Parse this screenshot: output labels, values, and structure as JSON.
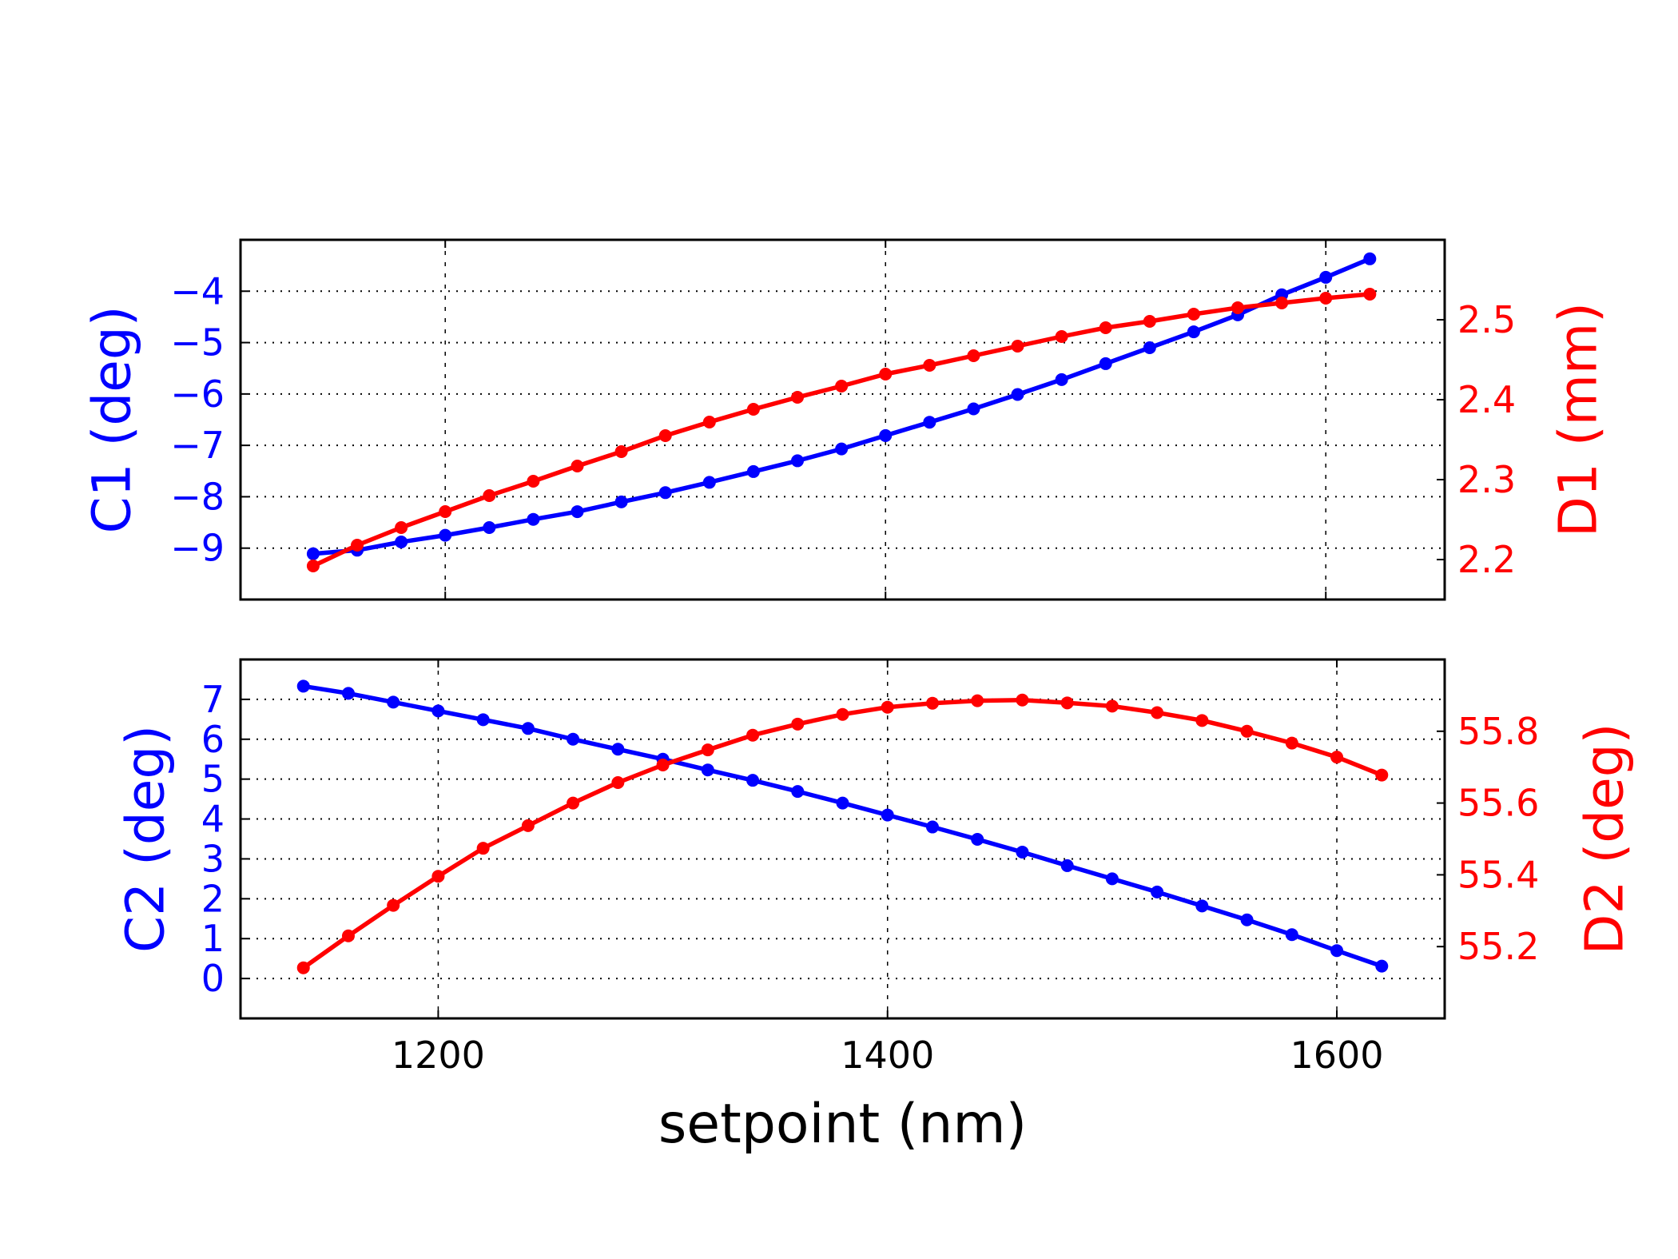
{
  "colors": {
    "left_series": "#0000ff",
    "right_series": "#ff0000",
    "grid": "#000000"
  },
  "chart_data": [
    {
      "type": "line",
      "panel": "top",
      "xlabel": "",
      "ylabel_left": "C1 (deg)",
      "ylabel_right": "D1 (mm)",
      "xlim": [
        1107,
        1654
      ],
      "ylim_left": [
        -10,
        -3
      ],
      "ylim_right": [
        2.15,
        2.6
      ],
      "xticks": [
        1200,
        1400,
        1600
      ],
      "show_xtick_labels": false,
      "yticks_left": [
        -9,
        -8,
        -7,
        -6,
        -5,
        -4
      ],
      "ytick_labels_left": [
        "−9",
        "−8",
        "−7",
        "−6",
        "−5",
        "−4"
      ],
      "yticks_right": [
        2.2,
        2.3,
        2.4,
        2.5
      ],
      "ytick_labels_right": [
        "2.2",
        "2.3",
        "2.4",
        "2.5"
      ],
      "grid": true,
      "x": [
        1140,
        1160,
        1180,
        1200,
        1220,
        1240,
        1260,
        1280,
        1300,
        1320,
        1340,
        1360,
        1380,
        1400,
        1420,
        1440,
        1460,
        1480,
        1500,
        1520,
        1540,
        1560,
        1580,
        1600,
        1620
      ],
      "series": [
        {
          "axis": "left",
          "color": "#0000ff",
          "values": [
            -9.11,
            -9.04,
            -8.88,
            -8.75,
            -8.6,
            -8.44,
            -8.29,
            -8.1,
            -7.92,
            -7.72,
            -7.51,
            -7.3,
            -7.07,
            -6.81,
            -6.55,
            -6.29,
            -6.01,
            -5.72,
            -5.41,
            -5.1,
            -4.79,
            -4.46,
            -4.07,
            -3.73,
            -3.37
          ]
        },
        {
          "axis": "right",
          "color": "#ff0000",
          "values": [
            2.192,
            2.218,
            2.24,
            2.26,
            2.28,
            2.298,
            2.317,
            2.335,
            2.355,
            2.372,
            2.388,
            2.403,
            2.417,
            2.432,
            2.443,
            2.455,
            2.467,
            2.479,
            2.49,
            2.498,
            2.507,
            2.515,
            2.521,
            2.527,
            2.532
          ]
        }
      ]
    },
    {
      "type": "line",
      "panel": "bottom",
      "xlabel": "setpoint (nm)",
      "ylabel_left": "C2 (deg)",
      "ylabel_right": "D2 (deg)",
      "xlim": [
        1112,
        1648
      ],
      "ylim_left": [
        -1,
        8
      ],
      "ylim_right": [
        55.0,
        56.0
      ],
      "xticks": [
        1200,
        1400,
        1600
      ],
      "xtick_labels": [
        "1200",
        "1400",
        "1600"
      ],
      "show_xtick_labels": true,
      "yticks_left": [
        0,
        1,
        2,
        3,
        4,
        5,
        6,
        7
      ],
      "ytick_labels_left": [
        "0",
        "1",
        "2",
        "3",
        "4",
        "5",
        "6",
        "7"
      ],
      "yticks_right": [
        55.2,
        55.4,
        55.6,
        55.8
      ],
      "ytick_labels_right": [
        "55.2",
        "55.4",
        "55.6",
        "55.8"
      ],
      "grid": true,
      "x": [
        1140,
        1160,
        1180,
        1200,
        1220,
        1240,
        1260,
        1280,
        1300,
        1320,
        1340,
        1360,
        1380,
        1400,
        1420,
        1440,
        1460,
        1480,
        1500,
        1520,
        1540,
        1560,
        1580,
        1600,
        1620
      ],
      "series": [
        {
          "axis": "left",
          "color": "#0000ff",
          "values": [
            7.33,
            7.15,
            6.93,
            6.71,
            6.49,
            6.27,
            6.0,
            5.75,
            5.5,
            5.23,
            4.97,
            4.69,
            4.4,
            4.1,
            3.8,
            3.49,
            3.17,
            2.83,
            2.5,
            2.17,
            1.82,
            1.47,
            1.1,
            0.7,
            0.31
          ]
        },
        {
          "axis": "right",
          "color": "#ff0000",
          "values": [
            55.141,
            55.23,
            55.315,
            55.396,
            55.474,
            55.537,
            55.6,
            55.657,
            55.706,
            55.748,
            55.789,
            55.82,
            55.847,
            55.867,
            55.878,
            55.885,
            55.887,
            55.879,
            55.87,
            55.852,
            55.83,
            55.8,
            55.767,
            55.728,
            55.678
          ]
        }
      ]
    }
  ]
}
